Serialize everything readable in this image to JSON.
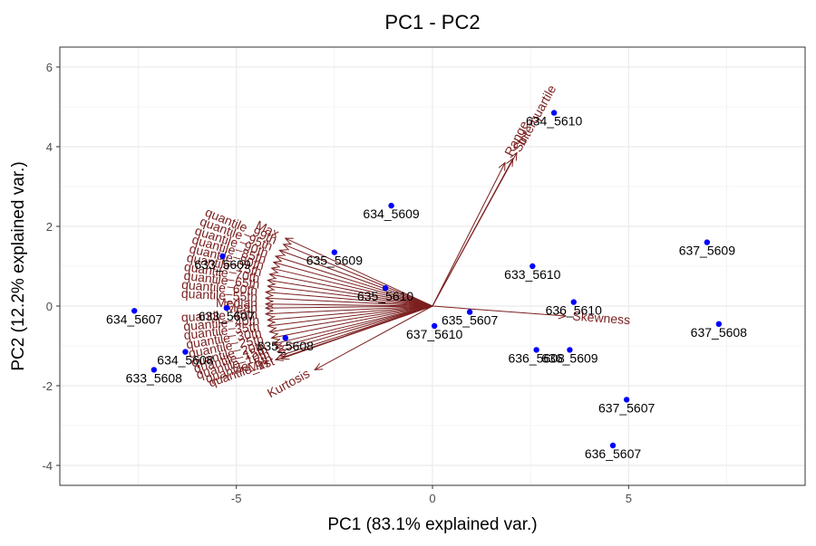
{
  "chart_data": {
    "type": "scatter",
    "subtype": "pca-biplot",
    "title": "PC1 - PC2",
    "xlabel": "PC1 (83.1% explained var.)",
    "ylabel": "PC2 (12.2% explained var.)",
    "xlim": [
      -9.5,
      9.5
    ],
    "ylim": [
      -4.5,
      6.5
    ],
    "xticks": [
      -5,
      0,
      5
    ],
    "yticks": [
      -4,
      -2,
      0,
      2,
      4,
      6
    ],
    "grid": true,
    "legend": "none",
    "colors": {
      "points": "#0000ff",
      "loadings": "#7b1f1f",
      "grid": "#ebebeb",
      "panel_border": "#333333",
      "point_labels": "#000000"
    },
    "points": [
      {
        "label": "634_5610",
        "x": 3.1,
        "y": 4.85
      },
      {
        "label": "634_5609",
        "x": -1.05,
        "y": 2.52
      },
      {
        "label": "637_5609",
        "x": 7.0,
        "y": 1.6
      },
      {
        "label": "633_5610",
        "x": 2.55,
        "y": 1.0
      },
      {
        "label": "635_5609",
        "x": -2.5,
        "y": 1.35
      },
      {
        "label": "633_5609",
        "x": -5.35,
        "y": 1.25
      },
      {
        "label": "635_5610",
        "x": -1.2,
        "y": 0.45
      },
      {
        "label": "636_5610",
        "x": 3.6,
        "y": 0.1
      },
      {
        "label": "634_5607",
        "x": -7.6,
        "y": -0.12
      },
      {
        "label": "633_5607",
        "x": -5.25,
        "y": -0.05
      },
      {
        "label": "635_5607",
        "x": 0.95,
        "y": -0.15
      },
      {
        "label": "637_5608",
        "x": 7.3,
        "y": -0.45
      },
      {
        "label": "637_5610",
        "x": 0.05,
        "y": -0.5
      },
      {
        "label": "635_5608",
        "x": -3.75,
        "y": -0.8
      },
      {
        "label": "636_5608",
        "x": 2.65,
        "y": -1.1
      },
      {
        "label": "636_5609",
        "x": 3.5,
        "y": -1.1
      },
      {
        "label": "634_5608",
        "x": -6.3,
        "y": -1.15
      },
      {
        "label": "633_5608",
        "x": -7.1,
        "y": -1.6
      },
      {
        "label": "637_5607",
        "x": 4.95,
        "y": -2.35
      },
      {
        "label": "636_5607",
        "x": 4.6,
        "y": -3.5
      }
    ],
    "loadings": [
      {
        "label": "Range",
        "x": 1.85,
        "y": 3.6
      },
      {
        "label": "Interquartile",
        "x": 2.15,
        "y": 3.85
      },
      {
        "label": "Sd",
        "x": 2.05,
        "y": 3.7
      },
      {
        "label": "Skewness",
        "x": 3.4,
        "y": -0.25
      },
      {
        "label": "Kurtosis",
        "x": -3.0,
        "y": -1.6
      },
      {
        "label": "Min",
        "x": -4.0,
        "y": -1.35
      },
      {
        "label": "Max",
        "x": -3.75,
        "y": 1.7
      },
      {
        "label": "quantile_99th",
        "x": -3.8,
        "y": 1.55
      },
      {
        "label": "quantile_95th",
        "x": -3.9,
        "y": 1.4
      },
      {
        "label": "quantile_90th",
        "x": -4.0,
        "y": 1.25
      },
      {
        "label": "quantile_85th",
        "x": -4.05,
        "y": 1.1
      },
      {
        "label": "quantile_80th",
        "x": -4.1,
        "y": 0.95
      },
      {
        "label": "quantile_75th",
        "x": -4.15,
        "y": 0.8
      },
      {
        "label": "quantile_70th",
        "x": -4.2,
        "y": 0.65
      },
      {
        "label": "quantile_65th",
        "x": -4.2,
        "y": 0.5
      },
      {
        "label": "quantile_60th",
        "x": -4.25,
        "y": 0.35
      },
      {
        "label": "quantile_55th",
        "x": -4.25,
        "y": 0.2
      },
      {
        "label": "Median",
        "x": -4.25,
        "y": 0.05
      },
      {
        "label": "Mean",
        "x": -4.25,
        "y": -0.05
      },
      {
        "label": "quantile_45th",
        "x": -4.25,
        "y": -0.2
      },
      {
        "label": "quantile_40th",
        "x": -4.2,
        "y": -0.35
      },
      {
        "label": "quantile_35th",
        "x": -4.2,
        "y": -0.5
      },
      {
        "label": "quantile_30th",
        "x": -4.15,
        "y": -0.65
      },
      {
        "label": "quantile_25th",
        "x": -4.1,
        "y": -0.8
      },
      {
        "label": "quantile_20th",
        "x": -4.05,
        "y": -0.95
      },
      {
        "label": "quantile_15th",
        "x": -4.0,
        "y": -1.05
      },
      {
        "label": "quantile_10th",
        "x": -3.95,
        "y": -1.15
      },
      {
        "label": "quantile_5th",
        "x": -3.9,
        "y": -1.25
      },
      {
        "label": "quantile_1st",
        "x": -3.85,
        "y": -1.32
      }
    ]
  }
}
